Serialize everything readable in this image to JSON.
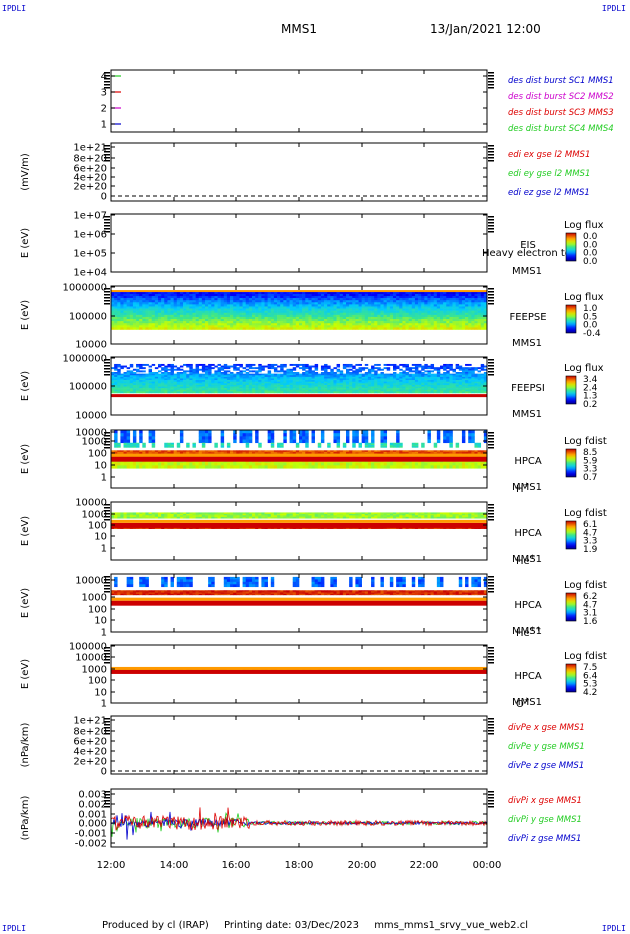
{
  "corners": {
    "top_left": "IPDLI",
    "top_right": "IPDLI",
    "bottom_left": "IPDLI",
    "bottom_right": "IPDLI"
  },
  "header": {
    "mission": "MMS1",
    "datetime": "13/Jan/2021 12:00"
  },
  "footer": {
    "producer": "Produced by cl (IRAP)",
    "printing": "Printing date: 03/Dec/2023",
    "script": "mms_mms1_srvy_vue_web2.cl"
  },
  "x_ticks": [
    "12:00",
    "14:00",
    "16:00",
    "18:00",
    "20:00",
    "22:00",
    "00:00"
  ],
  "colors": {
    "red": "#dd0000",
    "green": "#22cc22",
    "blue": "#0000cc",
    "magenta": "#cc00cc"
  },
  "chart_data": [
    {
      "type": "line",
      "yticks": [
        "4",
        "3",
        "2",
        "1"
      ],
      "ylabel": "",
      "legend": [
        {
          "text": "des dist burst SC1 MMS1",
          "color": "#0000cc"
        },
        {
          "text": "des dist burst SC2 MMS2",
          "color": "#cc00cc"
        },
        {
          "text": "des dist burst SC3 MMS3",
          "color": "#dd0000"
        },
        {
          "text": "des dist burst SC4 MMS4",
          "color": "#22cc22"
        }
      ]
    },
    {
      "type": "line",
      "ylabel": "(mV/m)",
      "yticks": [
        "1e+21",
        "8e+20",
        "6e+20",
        "4e+20",
        "2e+20",
        "0"
      ],
      "legend": [
        {
          "text": "edi ex gse l2 MMS1",
          "color": "#dd0000"
        },
        {
          "text": "edi ey gse l2 MMS1",
          "color": "#22cc22"
        },
        {
          "text": "edi ez gse l2 MMS1",
          "color": "#0000cc"
        }
      ]
    },
    {
      "type": "heatmap",
      "ylabel": "E (eV)",
      "yticks": [
        "1e+07",
        "1e+06",
        "1e+05",
        "1e+04"
      ],
      "instrument": "EIS",
      "extra": "Heavy electron to",
      "sc": "MMS1",
      "cbar_title": "Log flux",
      "cbar_ticks": [
        "0.0",
        "0.0",
        "0.0",
        "0.0"
      ]
    },
    {
      "type": "heatmap",
      "ylabel": "E (eV)",
      "yticks": [
        "1000000",
        "100000",
        "10000"
      ],
      "instrument": "FEEPSE",
      "sc": "MMS1",
      "cbar_title": "Log flux",
      "cbar_ticks": [
        "1.0",
        "0.5",
        "0.0",
        "-0.4"
      ]
    },
    {
      "type": "heatmap",
      "ylabel": "E (eV)",
      "yticks": [
        "1000000",
        "100000",
        "10000"
      ],
      "instrument": "FEEPSI",
      "sc": "MMS1",
      "cbar_title": "Log flux",
      "cbar_ticks": [
        "3.4",
        "2.4",
        "1.3",
        "0.2"
      ]
    },
    {
      "type": "heatmap",
      "ylabel": "E (eV)",
      "yticks": [
        "10000",
        "1000",
        "100",
        "10",
        "1"
      ],
      "instrument": "HPCA",
      "sc": "MMS1",
      "species": "H",
      "charge": "+",
      "cbar_title": "Log fdist",
      "cbar_ticks": [
        "8.5",
        "5.9",
        "3.3",
        "0.7"
      ]
    },
    {
      "type": "heatmap",
      "ylabel": "E (eV)",
      "yticks": [
        "10000",
        "1000",
        "100",
        "10",
        "1"
      ],
      "instrument": "HPCA",
      "sc": "MMS1",
      "species": "He",
      "charge": "+",
      "cbar_title": "Log fdist",
      "cbar_ticks": [
        "6.1",
        "4.7",
        "3.3",
        "1.9"
      ]
    },
    {
      "type": "heatmap",
      "ylabel": "E (eV)",
      "yticks": [
        "10000",
        "1000",
        "100",
        "10",
        "1"
      ],
      "instrument": "HPCA",
      "sc": "MMS1",
      "species": "He",
      "charge": "++",
      "cbar_title": "Log fdist",
      "cbar_ticks": [
        "6.2",
        "4.7",
        "3.1",
        "1.6"
      ]
    },
    {
      "type": "heatmap",
      "ylabel": "E (eV)",
      "yticks": [
        "100000",
        "10000",
        "1000",
        "100",
        "10",
        "1"
      ],
      "instrument": "HPCA",
      "sc": "MMS1",
      "species": "O",
      "charge": "+",
      "cbar_title": "Log fdist",
      "cbar_ticks": [
        "7.5",
        "6.4",
        "5.3",
        "4.2"
      ]
    },
    {
      "type": "line",
      "ylabel": "(nPa/km)",
      "yticks": [
        "1e+21",
        "8e+20",
        "6e+20",
        "4e+20",
        "2e+20",
        "0"
      ],
      "legend": [
        {
          "text": "divPe x gse MMS1",
          "color": "#dd0000"
        },
        {
          "text": "divPe y gse MMS1",
          "color": "#22cc22"
        },
        {
          "text": "divPe z gse MMS1",
          "color": "#0000cc"
        }
      ]
    },
    {
      "type": "line",
      "ylabel": "(nPa/km)",
      "yticks": [
        "0.003",
        "0.002",
        "0.001",
        "0.000",
        "-0.001",
        "-0.002"
      ],
      "legend": [
        {
          "text": "divPi x gse MMS1",
          "color": "#dd0000"
        },
        {
          "text": "divPi y gse MMS1",
          "color": "#22cc22"
        },
        {
          "text": "divPi z gse MMS1",
          "color": "#0000cc"
        }
      ]
    }
  ]
}
